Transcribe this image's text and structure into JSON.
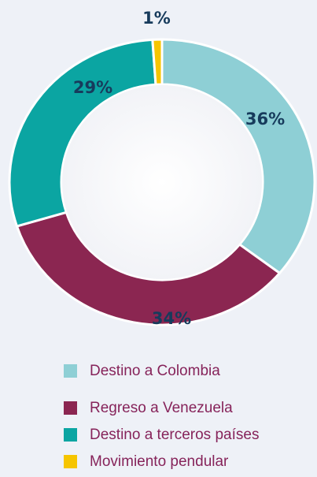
{
  "chart_data": {
    "type": "donut",
    "categories": [
      "Destino a Colombia",
      "Regreso a Venezuela",
      "Destino a terceros países",
      "Movimiento pendular"
    ],
    "values": [
      36,
      34,
      29,
      1
    ],
    "value_labels": [
      "36%",
      "34%",
      "29%",
      "1%"
    ],
    "colors": [
      "#8ecfd5",
      "#8b2651",
      "#0ba5a2",
      "#f6c500"
    ],
    "legend": "bottom"
  }
}
